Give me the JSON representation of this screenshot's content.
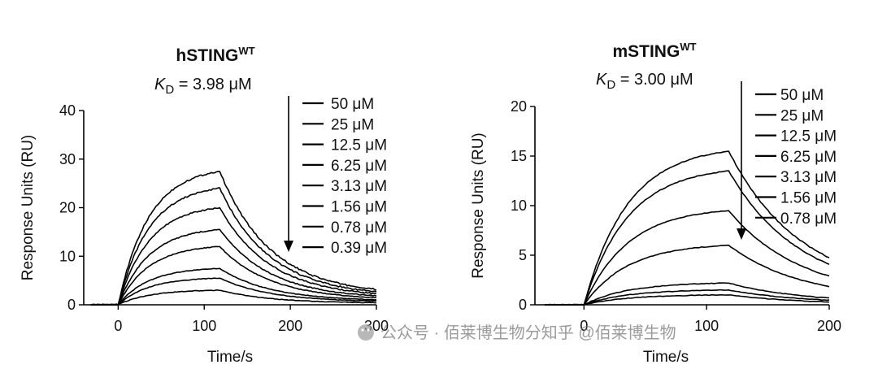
{
  "chart_data": [
    {
      "type": "line",
      "title": "hSTING",
      "title_superscript": "WT",
      "kd_label": {
        "symbol": "K",
        "subscript": "D",
        "value_text": " = 3.98 μM"
      },
      "xlabel": "Time/s",
      "ylabel": "Response Units (RU)",
      "xlim": [
        -40,
        300
      ],
      "ylim": [
        0,
        40
      ],
      "xticks": [
        0,
        100,
        200,
        300
      ],
      "yticks": [
        0,
        10,
        20,
        30,
        40
      ],
      "grid": false,
      "legend_position": "top-right",
      "legend_arrow": "down",
      "injection_start": 0,
      "injection_end": 118,
      "series": [
        {
          "name": "50 μM",
          "peak": 27.5,
          "end": 3.3
        },
        {
          "name": "25 μM",
          "peak": 24.0,
          "end": 2.8
        },
        {
          "name": "12.5 μM",
          "peak": 20.0,
          "end": 2.4
        },
        {
          "name": "6.25 μM",
          "peak": 15.5,
          "end": 2.0
        },
        {
          "name": "3.13 μM",
          "peak": 12.0,
          "end": 1.6
        },
        {
          "name": "1.56 μM",
          "peak": 7.5,
          "end": 1.2
        },
        {
          "name": "0.78 μM",
          "peak": 5.5,
          "end": 0.9
        },
        {
          "name": "0.39 μM",
          "peak": 3.0,
          "end": 0.5
        }
      ]
    },
    {
      "type": "line",
      "title": "mSTING",
      "title_superscript": "WT",
      "kd_label": {
        "symbol": "K",
        "subscript": "D",
        "value_text": " = 3.00 μM"
      },
      "xlabel": "Time/s",
      "ylabel": "Response Units (RU)",
      "xlim": [
        -40,
        200
      ],
      "ylim": [
        0,
        20
      ],
      "xticks": [
        0,
        100,
        200
      ],
      "yticks": [
        0,
        5,
        10,
        15,
        20
      ],
      "grid": false,
      "legend_position": "top-right",
      "legend_arrow": "down",
      "injection_start": 0,
      "injection_end": 118,
      "series": [
        {
          "name": "50 μM",
          "peak": 15.5,
          "end": 2.0
        },
        {
          "name": "25 μM",
          "peak": 13.5,
          "end": 1.6
        },
        {
          "name": "12.5 μM",
          "peak": 9.5,
          "end": 1.2
        },
        {
          "name": "6.25 μM",
          "peak": 6.0,
          "end": 0.8
        },
        {
          "name": "3.13 μM",
          "peak": 2.2,
          "end": 0.3
        },
        {
          "name": "1.56 μM",
          "peak": 1.5,
          "end": 0.2
        },
        {
          "name": "0.78 μM",
          "peak": 1.0,
          "end": 0.1
        }
      ]
    }
  ],
  "watermark": {
    "text": "公众号 · 佰莱博生物分知乎 @佰莱博生物",
    "icon": "wechat-icon"
  },
  "ticks_text": {
    "left_x": [
      "0",
      "100",
      "200",
      "300"
    ],
    "left_y": [
      "0",
      "10",
      "20",
      "30",
      "40"
    ],
    "right_x": [
      "0",
      "100",
      "200"
    ],
    "right_y": [
      "0",
      "5",
      "10",
      "15",
      "20"
    ]
  }
}
